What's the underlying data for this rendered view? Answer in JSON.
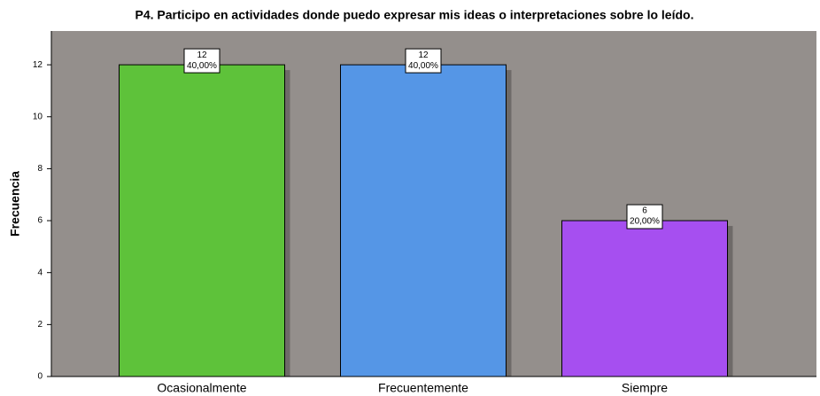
{
  "chart_data": {
    "type": "bar",
    "title": "P4. Participo en actividades donde puedo expresar mis ideas o interpretaciones sobre lo leído.",
    "y_label": "Frecuencia",
    "categories": [
      "Ocasionalmente",
      "Frecuentemente",
      "Siempre"
    ],
    "values": [
      12,
      12,
      6
    ],
    "percent_values": [
      40,
      40,
      20
    ],
    "percent_labels": [
      "40,00%",
      "40,00%",
      "20,00%"
    ],
    "colors": [
      "#5ec23a",
      "#5596e6",
      "#a64ff0"
    ],
    "ylim": [
      0,
      13.3
    ],
    "yticks": [
      0,
      2,
      4,
      6,
      8,
      10,
      12
    ],
    "grid": false
  }
}
